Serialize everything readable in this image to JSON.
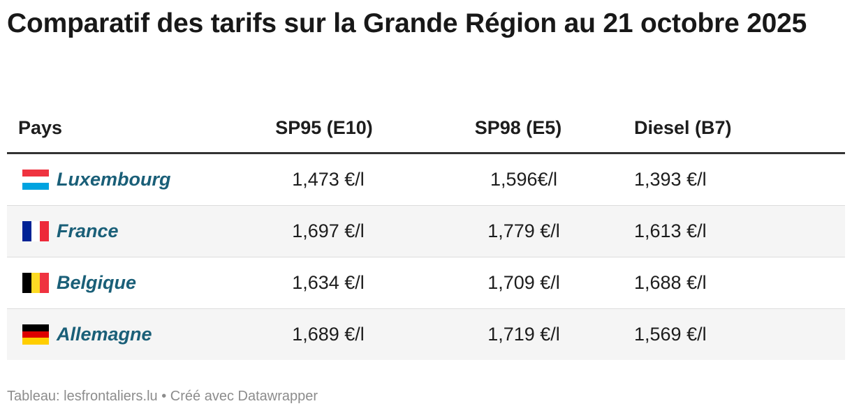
{
  "title": "Comparatif des tarifs sur la Grande Région au 21 octobre 2025",
  "table": {
    "headers": {
      "country": "Pays",
      "sp95": "SP95 (E10)",
      "sp98": "SP98 (E5)",
      "diesel": "Diesel (B7)"
    },
    "rows": [
      {
        "country": "Luxembourg",
        "flag": "luxembourg-flag-icon",
        "flag_colors": [
          "#ef3340",
          "#ffffff",
          "#00a3e0"
        ],
        "sp95": "1,473 €/l",
        "sp98": "1,596€/l",
        "diesel": "1,393 €/l"
      },
      {
        "country": "France",
        "flag": "france-flag-icon",
        "flag_colors": [
          "#002395",
          "#ffffff",
          "#ed2939"
        ],
        "sp95": "1,697 €/l",
        "sp98": "1,779 €/l",
        "diesel": "1,613 €/l"
      },
      {
        "country": "Belgique",
        "flag": "belgium-flag-icon",
        "flag_colors": [
          "#000000",
          "#fdda24",
          "#ef3340"
        ],
        "sp95": "1,634 €/l",
        "sp98": "1,709 €/l",
        "diesel": "1,688 €/l"
      },
      {
        "country": "Allemagne",
        "flag": "germany-flag-icon",
        "flag_colors": [
          "#000000",
          "#dd0000",
          "#ffce00"
        ],
        "sp95": "1,689 €/l",
        "sp98": "1,719 €/l",
        "diesel": "1,569 €/l"
      }
    ]
  },
  "footer": "Tableau: lesfrontaliers.lu • Créé avec Datawrapper",
  "colors": {
    "country_link": "#1a5f78",
    "header_rule": "#333333",
    "alt_row": "#f5f5f5",
    "footer_text": "#8c8c8c"
  }
}
